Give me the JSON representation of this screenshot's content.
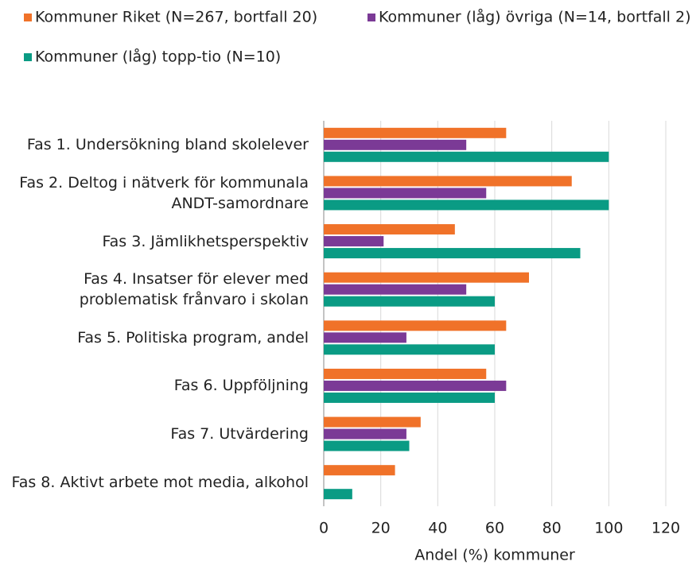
{
  "chart_data": {
    "type": "hbar",
    "xlabel": "Andel (%) kommuner",
    "categories": [
      "Fas 1. Undersökning bland skolelever",
      "Fas 2. Deltog i nätverk för kommunala\nANDT-samordnare",
      "Fas 3. Jämlikhetsperspektiv",
      "Fas 4. Insatser för elever med\nproblematisk frånvaro i skolan",
      "Fas 5. Politiska program, andel",
      "Fas 6. Uppföljning",
      "Fas 7. Utvärdering",
      "Fas 8. Aktivt arbete mot media, alkohol"
    ],
    "series": [
      {
        "name": "Kommuner Riket (N=267, bortfall 20)",
        "color": "#f07229",
        "values": [
          64,
          87,
          46,
          72,
          64,
          57,
          34,
          25
        ]
      },
      {
        "name": "Kommuner (låg) övriga (N=14, bortfall 2)",
        "color": "#7b3a96",
        "values": [
          50,
          57,
          21,
          50,
          29,
          64,
          29,
          0
        ]
      },
      {
        "name": "Kommuner (låg) topp-tio (N=10)",
        "color": "#0a9b84",
        "values": [
          100,
          100,
          90,
          60,
          60,
          60,
          30,
          10
        ]
      }
    ],
    "xlim": [
      0,
      120
    ],
    "xticks": [
      0,
      20,
      40,
      60,
      80,
      100,
      120
    ],
    "grid": true
  }
}
